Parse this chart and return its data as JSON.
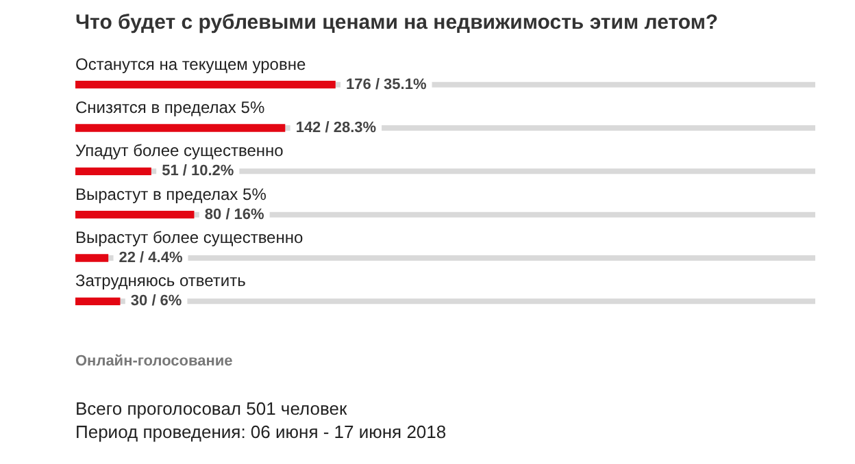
{
  "chart_data": {
    "type": "bar",
    "orientation": "horizontal",
    "title": "Что будет с рублевыми ценами на недвижимость этим летом?",
    "categories": [
      "Останутся на текущем уровне",
      "Снизятся в пределах 5%",
      "Упадут более существенно",
      "Вырастут в пределах 5%",
      "Вырастут более существенно",
      "Затрудняюсь ответить"
    ],
    "values": [
      35.1,
      28.3,
      10.2,
      16,
      4.4,
      6
    ],
    "value_labels": [
      "176 / 35.1%",
      "142 / 28.3%",
      "51 / 10.2%",
      "80 / 16%",
      "22 / 4.4%",
      "30 / 6%"
    ],
    "color": "#e30613",
    "xlim": [
      0,
      100
    ],
    "tick_labels": false,
    "annotations": [
      "Онлайн-голосование",
      "Всего проголосовал 501 человек",
      "Период проведения: 06 июня - 17 июня 2018"
    ]
  }
}
